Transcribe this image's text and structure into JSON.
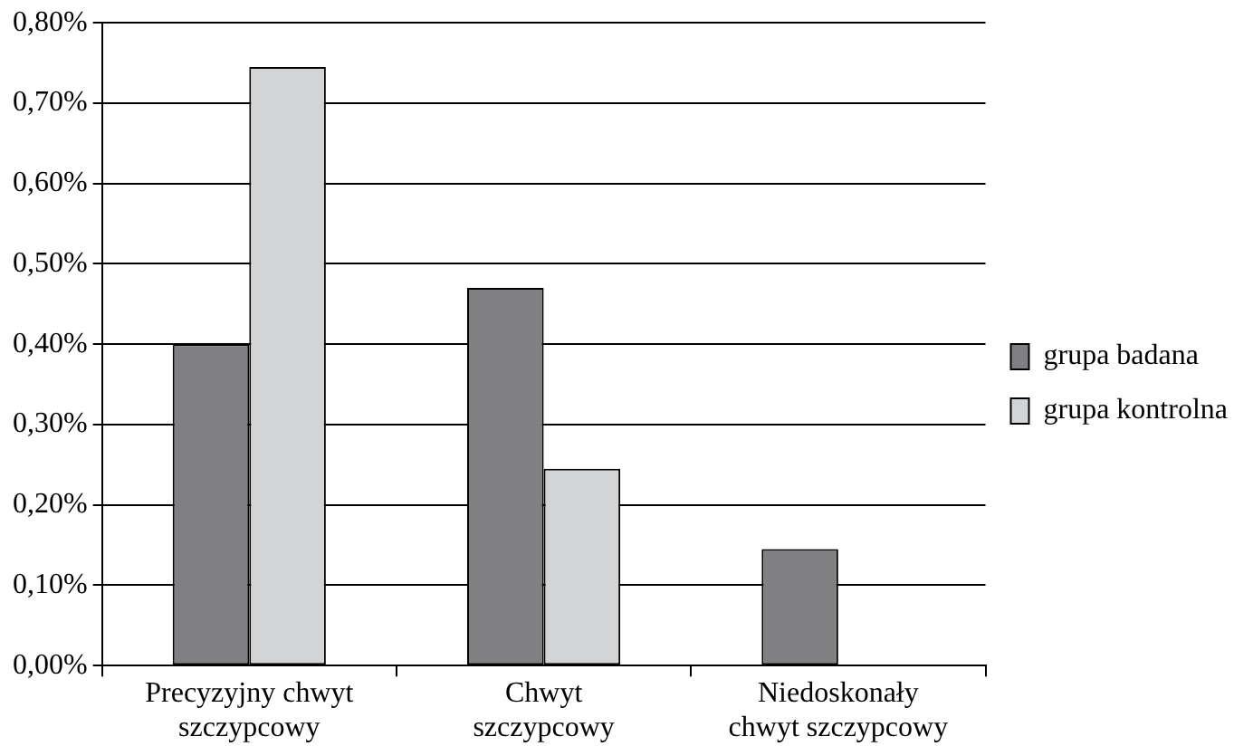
{
  "chart_data": {
    "type": "bar",
    "categories": [
      "Precyzyjny chwyt szczypcowy",
      "Chwyt szczypcowy",
      "Niedoskonały chwyt szczypcowy"
    ],
    "series": [
      {
        "name": "grupa badana",
        "color": "#808083",
        "values": [
          0.4,
          0.47,
          0.145
        ]
      },
      {
        "name": "grupa kontrolna",
        "color": "#d3d4d6",
        "values": [
          0.745,
          0.245,
          0
        ]
      }
    ],
    "ylim": [
      0,
      0.8
    ],
    "yticks": [
      {
        "value": 0,
        "label": "0,00%"
      },
      {
        "value": 0.1,
        "label": "0,10%"
      },
      {
        "value": 0.2,
        "label": "0,20%"
      },
      {
        "value": 0.3,
        "label": "0,30%"
      },
      {
        "value": 0.4,
        "label": "0,40%"
      },
      {
        "value": 0.5,
        "label": "0,50%"
      },
      {
        "value": 0.6,
        "label": "0,60%"
      },
      {
        "value": 0.7,
        "label": "0,70%"
      },
      {
        "value": 0.8,
        "label": "0,80%"
      }
    ],
    "grid": "y",
    "legend": "right"
  }
}
